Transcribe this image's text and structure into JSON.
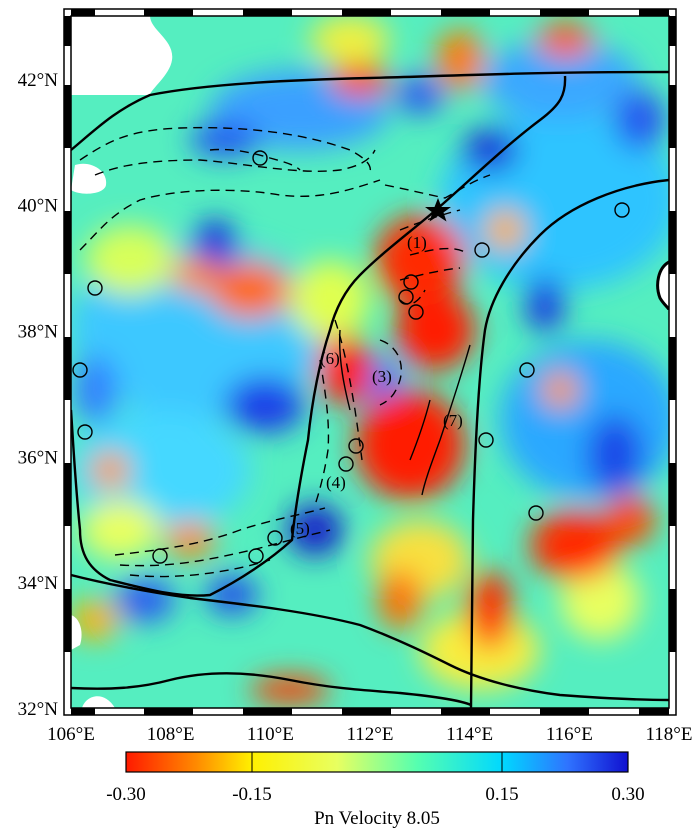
{
  "map": {
    "lon_ticks": [
      "106°E",
      "108°E",
      "110°E",
      "112°E",
      "114°E",
      "116°E",
      "118°E"
    ],
    "lat_ticks": [
      "32°N",
      "34°N",
      "36°N",
      "38°N",
      "40°N",
      "42°N"
    ],
    "lon_values": [
      106,
      108,
      110,
      112,
      114,
      116,
      118
    ],
    "lat_values": [
      32,
      34,
      36,
      38,
      40,
      42
    ],
    "lon_range": [
      106,
      118
    ],
    "lat_range": [
      32,
      43
    ],
    "feature_labels": [
      "(1)",
      "(3)",
      "(4)",
      "(5)",
      "(6)",
      "(7)"
    ]
  },
  "colorbar": {
    "ticks": [
      "-0.30",
      "-0.15",
      "0.15",
      "0.30"
    ],
    "title": "Pn Velocity 8.05",
    "colors": [
      "#ff1a00",
      "#ff8a00",
      "#fff000",
      "#e8ff60",
      "#55ffb0",
      "#00d8ff",
      "#2f73ff",
      "#1010d0"
    ]
  }
}
